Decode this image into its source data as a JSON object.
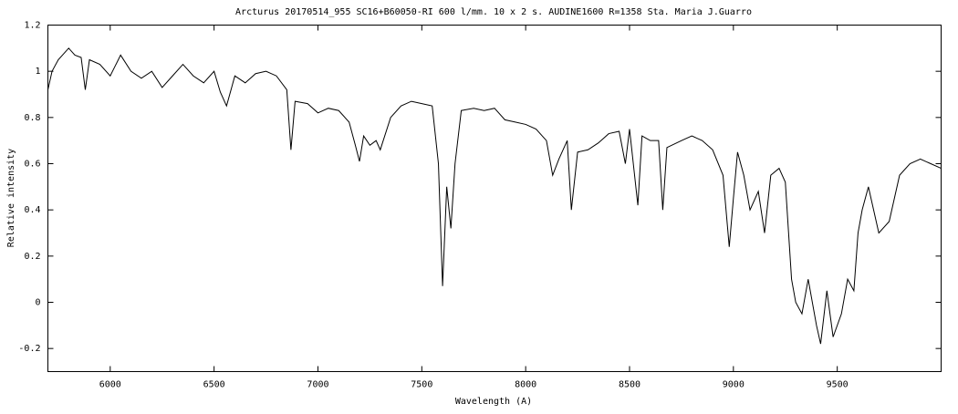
{
  "chart_data": {
    "type": "line",
    "title": "Arcturus  20170514_955   SC16+B60050-RI 600 l/mm. 10 x 2 s.  AUDINE1600  R=1358  Sta. Maria  J.Guarro",
    "x_label": "Wavelength (A)",
    "y_label": "Relative intensity",
    "x": [
      5700,
      5720,
      5750,
      5780,
      5800,
      5830,
      5860,
      5880,
      5900,
      5950,
      6000,
      6050,
      6100,
      6150,
      6200,
      6250,
      6300,
      6350,
      6400,
      6450,
      6500,
      6530,
      6560,
      6600,
      6650,
      6700,
      6750,
      6800,
      6850,
      6870,
      6890,
      6950,
      7000,
      7050,
      7100,
      7150,
      7180,
      7200,
      7220,
      7250,
      7280,
      7300,
      7350,
      7400,
      7450,
      7500,
      7550,
      7580,
      7600,
      7620,
      7640,
      7660,
      7690,
      7750,
      7800,
      7850,
      7900,
      7950,
      8000,
      8050,
      8100,
      8130,
      8160,
      8200,
      8220,
      8250,
      8300,
      8350,
      8400,
      8450,
      8480,
      8500,
      8540,
      8560,
      8600,
      8640,
      8660,
      8680,
      8750,
      8800,
      8850,
      8900,
      8950,
      8980,
      9000,
      9020,
      9050,
      9080,
      9120,
      9150,
      9180,
      9220,
      9250,
      9280,
      9300,
      9330,
      9360,
      9400,
      9420,
      9450,
      9480,
      9520,
      9550,
      9580,
      9600,
      9620,
      9650,
      9700,
      9750,
      9800,
      9850,
      9900,
      9950,
      10000
    ],
    "series": [
      {
        "color": "#000000",
        "values": [
          0.92,
          1.0,
          1.05,
          1.08,
          1.1,
          1.07,
          1.06,
          0.92,
          1.05,
          1.03,
          0.98,
          1.07,
          1.0,
          0.97,
          1.0,
          0.93,
          0.98,
          1.03,
          0.98,
          0.95,
          1.0,
          0.91,
          0.85,
          0.98,
          0.95,
          0.99,
          1.0,
          0.98,
          0.92,
          0.66,
          0.87,
          0.86,
          0.82,
          0.84,
          0.83,
          0.78,
          0.68,
          0.61,
          0.72,
          0.68,
          0.7,
          0.66,
          0.8,
          0.85,
          0.87,
          0.86,
          0.85,
          0.6,
          0.07,
          0.5,
          0.32,
          0.6,
          0.83,
          0.84,
          0.83,
          0.84,
          0.79,
          0.78,
          0.77,
          0.75,
          0.7,
          0.55,
          0.62,
          0.7,
          0.4,
          0.65,
          0.66,
          0.69,
          0.73,
          0.74,
          0.6,
          0.75,
          0.42,
          0.72,
          0.7,
          0.7,
          0.4,
          0.67,
          0.7,
          0.72,
          0.7,
          0.66,
          0.55,
          0.24,
          0.45,
          0.65,
          0.55,
          0.4,
          0.48,
          0.3,
          0.55,
          0.58,
          0.52,
          0.1,
          0.0,
          -0.05,
          0.1,
          -0.1,
          -0.18,
          0.05,
          -0.15,
          -0.05,
          0.1,
          0.05,
          0.3,
          0.4,
          0.5,
          0.3,
          0.35,
          0.55,
          0.6,
          0.62,
          0.6,
          0.58
        ]
      }
    ],
    "xlim": [
      5700,
      10000
    ],
    "xticks": [
      6000,
      6500,
      7000,
      7500,
      8000,
      8500,
      9000,
      9500
    ],
    "ylim": [
      -0.3,
      1.2
    ],
    "yticks": [
      -0.2,
      0,
      0.2,
      0.4,
      0.6,
      0.8,
      1,
      1.2
    ],
    "grid": false
  }
}
